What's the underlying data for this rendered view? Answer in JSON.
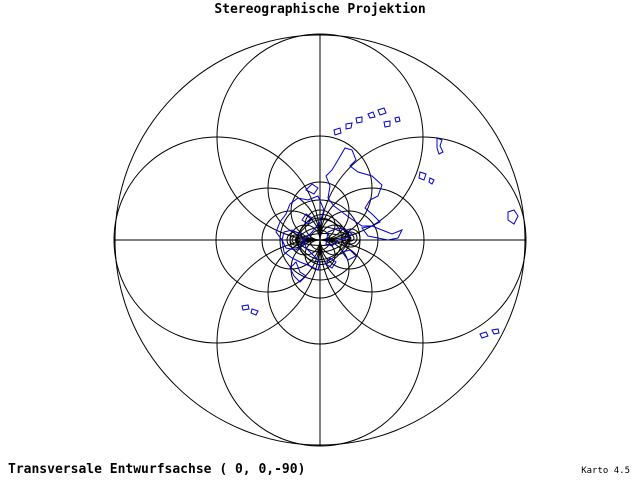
{
  "title": "Stereographische Projektion",
  "caption": "Transversale Entwurfsachse ( 0, 0,-90)",
  "version": "Karto 4.5",
  "projection": {
    "type": "stereographic",
    "graticule_color": "#000000",
    "coastline_color": "#0000cc"
  }
}
